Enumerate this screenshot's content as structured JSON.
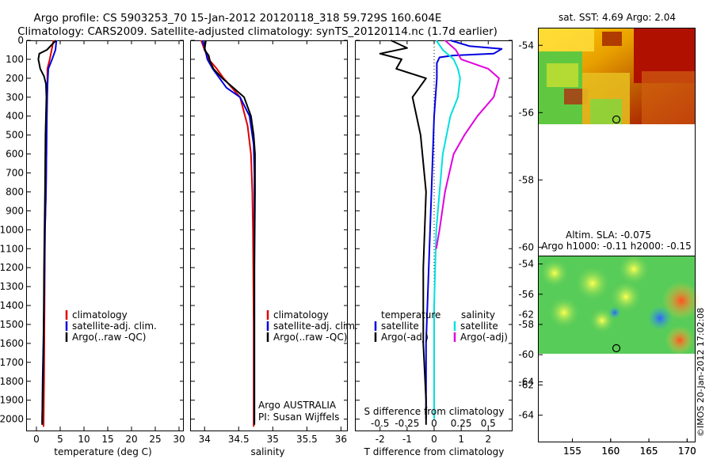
{
  "header": {
    "line1": "Argo profile: CS 5903253_70 15-Jan-2012 20120118_318 59.729S 160.604E",
    "line2": "Climatology: CARS2009. Satellite-adjusted climatology: synTS_20120114.nc (1.7d earlier)"
  },
  "colors": {
    "climatology": "#e00000",
    "satellite": "#0000e0",
    "argo": "#000000",
    "sal_sat": "#00e0e0",
    "sal_argo": "#e000e0"
  },
  "chart_data": [
    {
      "id": "temperature",
      "type": "line",
      "xlabel": "temperature (deg C)",
      "ylabel": "",
      "xlim": [
        -2,
        31
      ],
      "ylim": [
        2060,
        0
      ],
      "xticks": [
        0,
        5,
        10,
        15,
        20,
        25,
        30
      ],
      "yticks": [
        0,
        100,
        200,
        300,
        400,
        500,
        600,
        700,
        800,
        900,
        1000,
        1100,
        1200,
        1300,
        1400,
        1500,
        1600,
        1700,
        1800,
        1900,
        2000
      ],
      "legend": [
        "climatology",
        "satellite-adj. clim.",
        "Argo(..raw -QC)"
      ],
      "series": [
        {
          "name": "climatology",
          "color": "#e00000",
          "x": [
            3.6,
            3.2,
            2.8,
            2.3,
            2.3,
            2.1,
            2.1,
            2.0,
            1.8,
            1.7,
            1.6,
            1.5
          ],
          "y": [
            0,
            50,
            100,
            150,
            250,
            400,
            600,
            800,
            1000,
            1400,
            1800,
            2040
          ]
        },
        {
          "name": "satellite-adj. clim.",
          "color": "#0000e0",
          "x": [
            4.2,
            4.0,
            3.3,
            2.5,
            2.3,
            2.2,
            2.1,
            2.0,
            1.8,
            1.6,
            1.3,
            1.2
          ],
          "y": [
            0,
            50,
            100,
            150,
            250,
            400,
            600,
            800,
            1000,
            1400,
            1800,
            2020
          ]
        },
        {
          "name": "Argo(..raw -QC)",
          "color": "#000000",
          "x": [
            4.1,
            2.2,
            0.6,
            0.4,
            0.8,
            1.6,
            2.0,
            2.1,
            1.9,
            1.8,
            1.6,
            1.5,
            1.3,
            1.2
          ],
          "y": [
            0,
            50,
            70,
            100,
            150,
            190,
            230,
            300,
            500,
            800,
            1200,
            1600,
            1900,
            2030
          ]
        }
      ]
    },
    {
      "id": "salinity",
      "type": "line",
      "xlabel": "salinity",
      "ylabel": "",
      "xlim": [
        33.8,
        36.1
      ],
      "ylim": [
        2060,
        0
      ],
      "xticks": [
        34,
        34.5,
        35,
        35.5,
        36
      ],
      "xticklabels": [
        "34",
        "34.5",
        "35",
        "35.5",
        "36"
      ],
      "legend": [
        "climatology",
        "satellite-adj. clim.",
        "Argo(..raw -QC)"
      ],
      "annotations": [
        "Argo AUSTRALIA",
        "PI: Susan Wijffels"
      ],
      "series": [
        {
          "name": "climatology",
          "color": "#e00000",
          "x": [
            33.95,
            34.0,
            34.06,
            34.18,
            34.28,
            34.4,
            34.52,
            34.63,
            34.68,
            34.7,
            34.71,
            34.72,
            34.72
          ],
          "y": [
            0,
            50,
            100,
            150,
            200,
            250,
            300,
            450,
            600,
            800,
            1000,
            1500,
            2040
          ]
        },
        {
          "name": "satellite-adj. clim.",
          "color": "#0000e0",
          "x": [
            33.97,
            34.01,
            34.04,
            34.12,
            34.22,
            34.32,
            34.52,
            34.66,
            34.72,
            34.73,
            34.73,
            34.73,
            34.73
          ],
          "y": [
            0,
            50,
            100,
            150,
            200,
            250,
            300,
            400,
            550,
            700,
            1000,
            1500,
            2020
          ]
        },
        {
          "name": "Argo(..raw -QC)",
          "color": "#000000",
          "x": [
            34.02,
            34.0,
            34.06,
            34.08,
            34.13,
            34.26,
            34.42,
            34.58,
            34.68,
            34.72,
            34.74,
            34.74,
            34.73,
            34.73
          ],
          "y": [
            0,
            50,
            80,
            110,
            150,
            200,
            250,
            300,
            400,
            500,
            600,
            800,
            1200,
            2030
          ]
        }
      ]
    },
    {
      "id": "difference",
      "type": "line",
      "xlabel": "T difference from climatology",
      "x2label": "S difference from climatology",
      "xlim": [
        -2.9,
        2.9
      ],
      "x2lim": [
        -0.725,
        0.725
      ],
      "ylim": [
        2060,
        0
      ],
      "xticks": [
        -2,
        -1,
        0,
        1,
        2
      ],
      "x2ticks": [
        -0.5,
        -0.25,
        0,
        0.25,
        0.5
      ],
      "x2ticklabels": [
        "-0.5",
        "-0.25",
        "0",
        "0.25",
        "0.5"
      ],
      "legend_titles": [
        "temperature",
        "salinity"
      ],
      "legend": [
        "satellite",
        "Argo(-adj)",
        "satellite",
        "Argo(-adj)"
      ],
      "series": [
        {
          "name": "temperature satellite",
          "color": "#0000e0",
          "axis": "T",
          "x": [
            0.6,
            1.3,
            2.5,
            2.2,
            0.7,
            0.2,
            0.1,
            0.1,
            0.0,
            -0.1,
            -0.2,
            -0.3,
            -0.3
          ],
          "y": [
            0,
            30,
            45,
            70,
            80,
            90,
            120,
            200,
            400,
            800,
            1200,
            1600,
            2000
          ]
        },
        {
          "name": "temperature Argo(-adj)",
          "color": "#000000",
          "axis": "T",
          "x": [
            -1.6,
            -1.0,
            -2.0,
            -1.2,
            -1.4,
            -0.3,
            -0.8,
            -0.5,
            -0.3,
            -0.4,
            -0.4,
            -0.3,
            -0.3
          ],
          "y": [
            0,
            40,
            70,
            100,
            150,
            200,
            300,
            500,
            800,
            1200,
            1600,
            1900,
            2030
          ]
        },
        {
          "name": "salinity satellite",
          "color": "#00e0e0",
          "axis": "S",
          "x": [
            0.02,
            0.08,
            0.18,
            0.22,
            0.24,
            0.22,
            0.15,
            0.08,
            0.05,
            0.02,
            0.0,
            0.0
          ],
          "y": [
            0,
            50,
            100,
            150,
            200,
            300,
            400,
            600,
            800,
            1000,
            1400,
            2000
          ]
        },
        {
          "name": "salinity Argo(-adj)",
          "color": "#e000e0",
          "axis": "S",
          "x": [
            0.1,
            0.2,
            0.25,
            0.5,
            0.6,
            0.55,
            0.4,
            0.28,
            0.18,
            0.1,
            0.05,
            0.02
          ],
          "y": [
            0,
            50,
            100,
            150,
            200,
            300,
            400,
            500,
            600,
            800,
            1000,
            1100
          ]
        }
      ]
    }
  ],
  "maps": [
    {
      "id": "sst-map",
      "title": "sat. SST: 4.69 Argo: 2.04",
      "xticks": [
        "155",
        "160",
        "165",
        "170"
      ],
      "yticks": [
        "-54",
        "-56",
        "-58",
        "-60",
        "-62",
        "-64"
      ]
    },
    {
      "id": "sla-map",
      "title_line1": "Altim. SLA: -0.075",
      "title_line2": "Argo h1000: -0.11 h2000: -0.15",
      "xticks": [
        "155",
        "160",
        "165",
        "170"
      ],
      "yticks": [
        "-54",
        "-56",
        "-58",
        "-60",
        "-62",
        "-64"
      ]
    }
  ],
  "footer": {
    "watermark": "©IMOS 20-Jan-2012 17:02:08"
  }
}
